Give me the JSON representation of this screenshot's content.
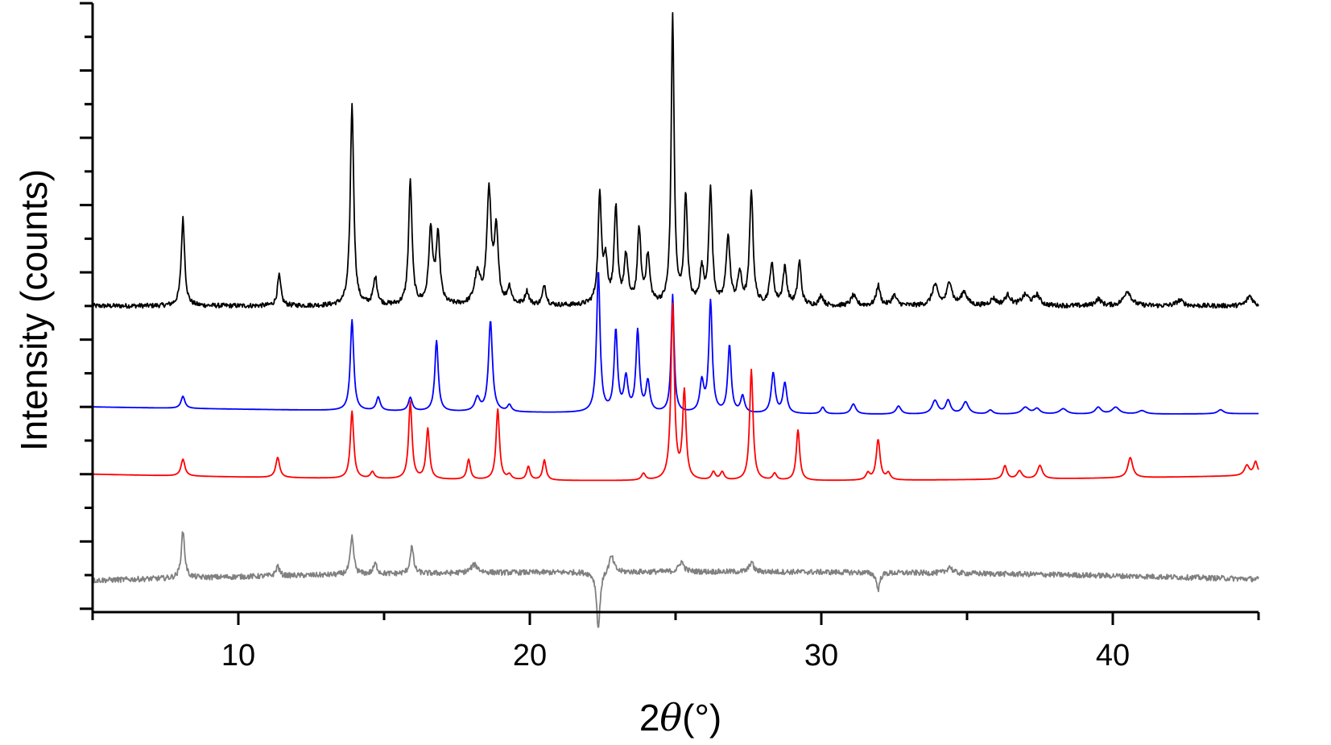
{
  "chart_data": {
    "type": "line",
    "title": "",
    "xlabel": "2θ(°)",
    "xlabel_prefix": "2",
    "xlabel_symbol": "θ",
    "xlabel_unit": "(°)",
    "ylabel": "Intensity (counts)",
    "xlim": [
      5,
      45
    ],
    "ylim": [
      -0.05,
      9.0
    ],
    "x_ticks": [
      10,
      20,
      30,
      40
    ],
    "x_tick_labels": [
      "10",
      "20",
      "30",
      "40"
    ],
    "y_tick_labels_shown": false,
    "grid": false,
    "legend": "none",
    "series": [
      {
        "color": "#000000",
        "baseline": 4.5,
        "noise": 0.035,
        "peaks": [
          [
            8.1,
            1.3,
            0.07
          ],
          [
            11.4,
            0.45,
            0.07
          ],
          [
            13.9,
            3.0,
            0.07
          ],
          [
            14.7,
            0.4,
            0.08
          ],
          [
            15.9,
            1.85,
            0.07
          ],
          [
            16.6,
            1.1,
            0.08
          ],
          [
            16.85,
            1.0,
            0.08
          ],
          [
            18.2,
            0.45,
            0.12
          ],
          [
            18.6,
            1.65,
            0.09
          ],
          [
            18.85,
            1.05,
            0.08
          ],
          [
            19.3,
            0.25,
            0.08
          ],
          [
            19.9,
            0.2,
            0.08
          ],
          [
            20.5,
            0.3,
            0.07
          ],
          [
            22.4,
            1.6,
            0.07
          ],
          [
            22.6,
            0.6,
            0.08
          ],
          [
            22.95,
            1.4,
            0.07
          ],
          [
            23.3,
            0.7,
            0.08
          ],
          [
            23.75,
            1.1,
            0.07
          ],
          [
            24.05,
            0.7,
            0.08
          ],
          [
            24.9,
            4.3,
            0.06
          ],
          [
            25.35,
            1.6,
            0.07
          ],
          [
            25.9,
            0.5,
            0.08
          ],
          [
            26.2,
            1.7,
            0.07
          ],
          [
            26.8,
            1.0,
            0.08
          ],
          [
            27.2,
            0.45,
            0.08
          ],
          [
            27.6,
            1.7,
            0.07
          ],
          [
            28.3,
            0.6,
            0.08
          ],
          [
            28.75,
            0.55,
            0.08
          ],
          [
            29.25,
            0.65,
            0.07
          ],
          [
            30.0,
            0.15,
            0.08
          ],
          [
            31.1,
            0.15,
            0.1
          ],
          [
            31.95,
            0.3,
            0.08
          ],
          [
            32.5,
            0.15,
            0.1
          ],
          [
            33.9,
            0.3,
            0.12
          ],
          [
            34.4,
            0.35,
            0.1
          ],
          [
            34.9,
            0.2,
            0.12
          ],
          [
            35.9,
            0.1,
            0.12
          ],
          [
            36.4,
            0.15,
            0.12
          ],
          [
            37.0,
            0.15,
            0.15
          ],
          [
            37.4,
            0.15,
            0.12
          ],
          [
            39.5,
            0.1,
            0.12
          ],
          [
            40.5,
            0.22,
            0.15
          ],
          [
            42.3,
            0.08,
            0.15
          ],
          [
            44.7,
            0.15,
            0.12
          ]
        ]
      },
      {
        "color": "#0000ff",
        "baseline_start": 3.0,
        "baseline_end": 2.9,
        "baseline_mid": 2.9,
        "noise": 0.0,
        "peaks": [
          [
            8.1,
            0.18,
            0.08
          ],
          [
            13.9,
            1.35,
            0.07
          ],
          [
            14.8,
            0.2,
            0.08
          ],
          [
            15.9,
            0.2,
            0.08
          ],
          [
            16.8,
            1.05,
            0.07
          ],
          [
            18.2,
            0.2,
            0.1
          ],
          [
            18.65,
            1.35,
            0.08
          ],
          [
            19.3,
            0.1,
            0.08
          ],
          [
            22.35,
            2.1,
            0.07
          ],
          [
            22.95,
            1.2,
            0.07
          ],
          [
            23.3,
            0.5,
            0.08
          ],
          [
            23.7,
            1.2,
            0.07
          ],
          [
            24.05,
            0.45,
            0.08
          ],
          [
            24.9,
            1.75,
            0.06
          ],
          [
            25.9,
            0.45,
            0.08
          ],
          [
            26.2,
            1.65,
            0.07
          ],
          [
            26.85,
            1.0,
            0.07
          ],
          [
            27.3,
            0.25,
            0.08
          ],
          [
            28.35,
            0.6,
            0.08
          ],
          [
            28.75,
            0.45,
            0.08
          ],
          [
            30.05,
            0.1,
            0.08
          ],
          [
            31.1,
            0.15,
            0.1
          ],
          [
            32.65,
            0.12,
            0.1
          ],
          [
            33.9,
            0.2,
            0.12
          ],
          [
            34.35,
            0.2,
            0.1
          ],
          [
            34.95,
            0.18,
            0.12
          ],
          [
            35.8,
            0.06,
            0.1
          ],
          [
            37.0,
            0.1,
            0.15
          ],
          [
            37.4,
            0.08,
            0.12
          ],
          [
            38.3,
            0.08,
            0.15
          ],
          [
            39.5,
            0.1,
            0.12
          ],
          [
            40.1,
            0.1,
            0.15
          ],
          [
            41.0,
            0.05,
            0.15
          ],
          [
            43.7,
            0.06,
            0.12
          ]
        ]
      },
      {
        "color": "#ff0000",
        "baseline_start": 2.0,
        "baseline_end": 1.98,
        "baseline_mid": 1.9,
        "noise": 0.0,
        "peaks": [
          [
            8.1,
            0.25,
            0.08
          ],
          [
            11.35,
            0.3,
            0.08
          ],
          [
            13.9,
            1.0,
            0.07
          ],
          [
            14.6,
            0.1,
            0.08
          ],
          [
            15.9,
            1.15,
            0.07
          ],
          [
            16.5,
            0.75,
            0.07
          ],
          [
            17.9,
            0.3,
            0.07
          ],
          [
            18.9,
            1.05,
            0.07
          ],
          [
            19.3,
            0.07,
            0.08
          ],
          [
            19.95,
            0.2,
            0.07
          ],
          [
            20.5,
            0.3,
            0.07
          ],
          [
            23.9,
            0.1,
            0.08
          ],
          [
            24.9,
            2.6,
            0.07
          ],
          [
            25.3,
            1.3,
            0.07
          ],
          [
            26.3,
            0.12,
            0.08
          ],
          [
            26.6,
            0.12,
            0.08
          ],
          [
            27.6,
            1.65,
            0.07
          ],
          [
            28.4,
            0.1,
            0.08
          ],
          [
            29.2,
            0.75,
            0.07
          ],
          [
            31.6,
            0.1,
            0.08
          ],
          [
            31.95,
            0.6,
            0.08
          ],
          [
            32.3,
            0.1,
            0.08
          ],
          [
            36.3,
            0.2,
            0.08
          ],
          [
            36.8,
            0.12,
            0.1
          ],
          [
            37.5,
            0.2,
            0.1
          ],
          [
            40.6,
            0.3,
            0.1
          ],
          [
            44.6,
            0.15,
            0.1
          ],
          [
            44.9,
            0.2,
            0.08
          ]
        ]
      },
      {
        "color": "#808080",
        "baseline_start": 0.42,
        "baseline_end": 0.44,
        "baseline_mid": 0.55,
        "noise": 0.04,
        "peaks": [
          [
            8.1,
            0.7,
            0.07
          ],
          [
            11.35,
            0.15,
            0.07
          ],
          [
            13.9,
            0.55,
            0.07
          ],
          [
            14.7,
            0.15,
            0.08
          ],
          [
            15.95,
            0.4,
            0.07
          ],
          [
            18.1,
            0.12,
            0.15
          ],
          [
            22.35,
            -0.85,
            0.07
          ],
          [
            22.8,
            0.25,
            0.1
          ],
          [
            25.2,
            0.15,
            0.1
          ],
          [
            27.6,
            0.15,
            0.08
          ],
          [
            31.95,
            -0.25,
            0.07
          ],
          [
            34.4,
            0.1,
            0.1
          ]
        ]
      }
    ]
  }
}
